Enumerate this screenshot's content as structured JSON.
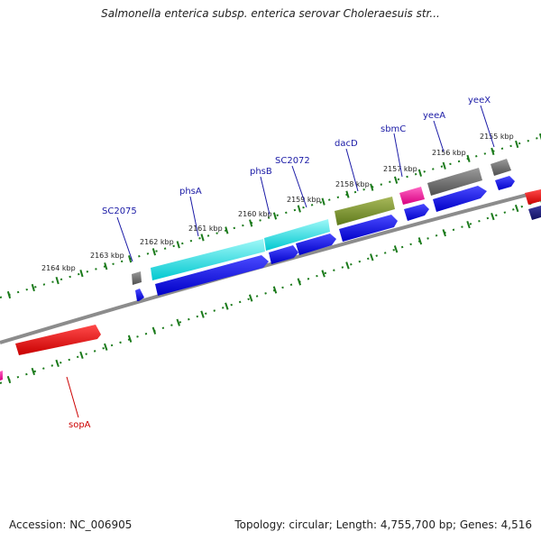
{
  "title": "Salmonella enterica subsp. enterica serovar Choleraesuis str...",
  "footer": {
    "accession": "Accession: NC_006905",
    "topology": "Topology: circular; Length: 4,755,700 bp; Genes: 4,516"
  },
  "colors": {
    "backbone": "#8c8c8c",
    "ticks": "#1a7a1a",
    "label_blue": "#1a1aa6",
    "label_red": "#cc0000"
  },
  "ticks": [
    "2155 kbp",
    "2156 kbp",
    "2157 kbp",
    "2158 kbp",
    "2159 kbp",
    "2160 kbp",
    "2161 kbp",
    "2162 kbp",
    "2163 kbp",
    "2164 kbp"
  ],
  "gene_labels": [
    "yeeX",
    "yeeA",
    "sbmC",
    "dacD",
    "SC2072",
    "phsB",
    "phsA",
    "SC2075",
    "sopA"
  ]
}
